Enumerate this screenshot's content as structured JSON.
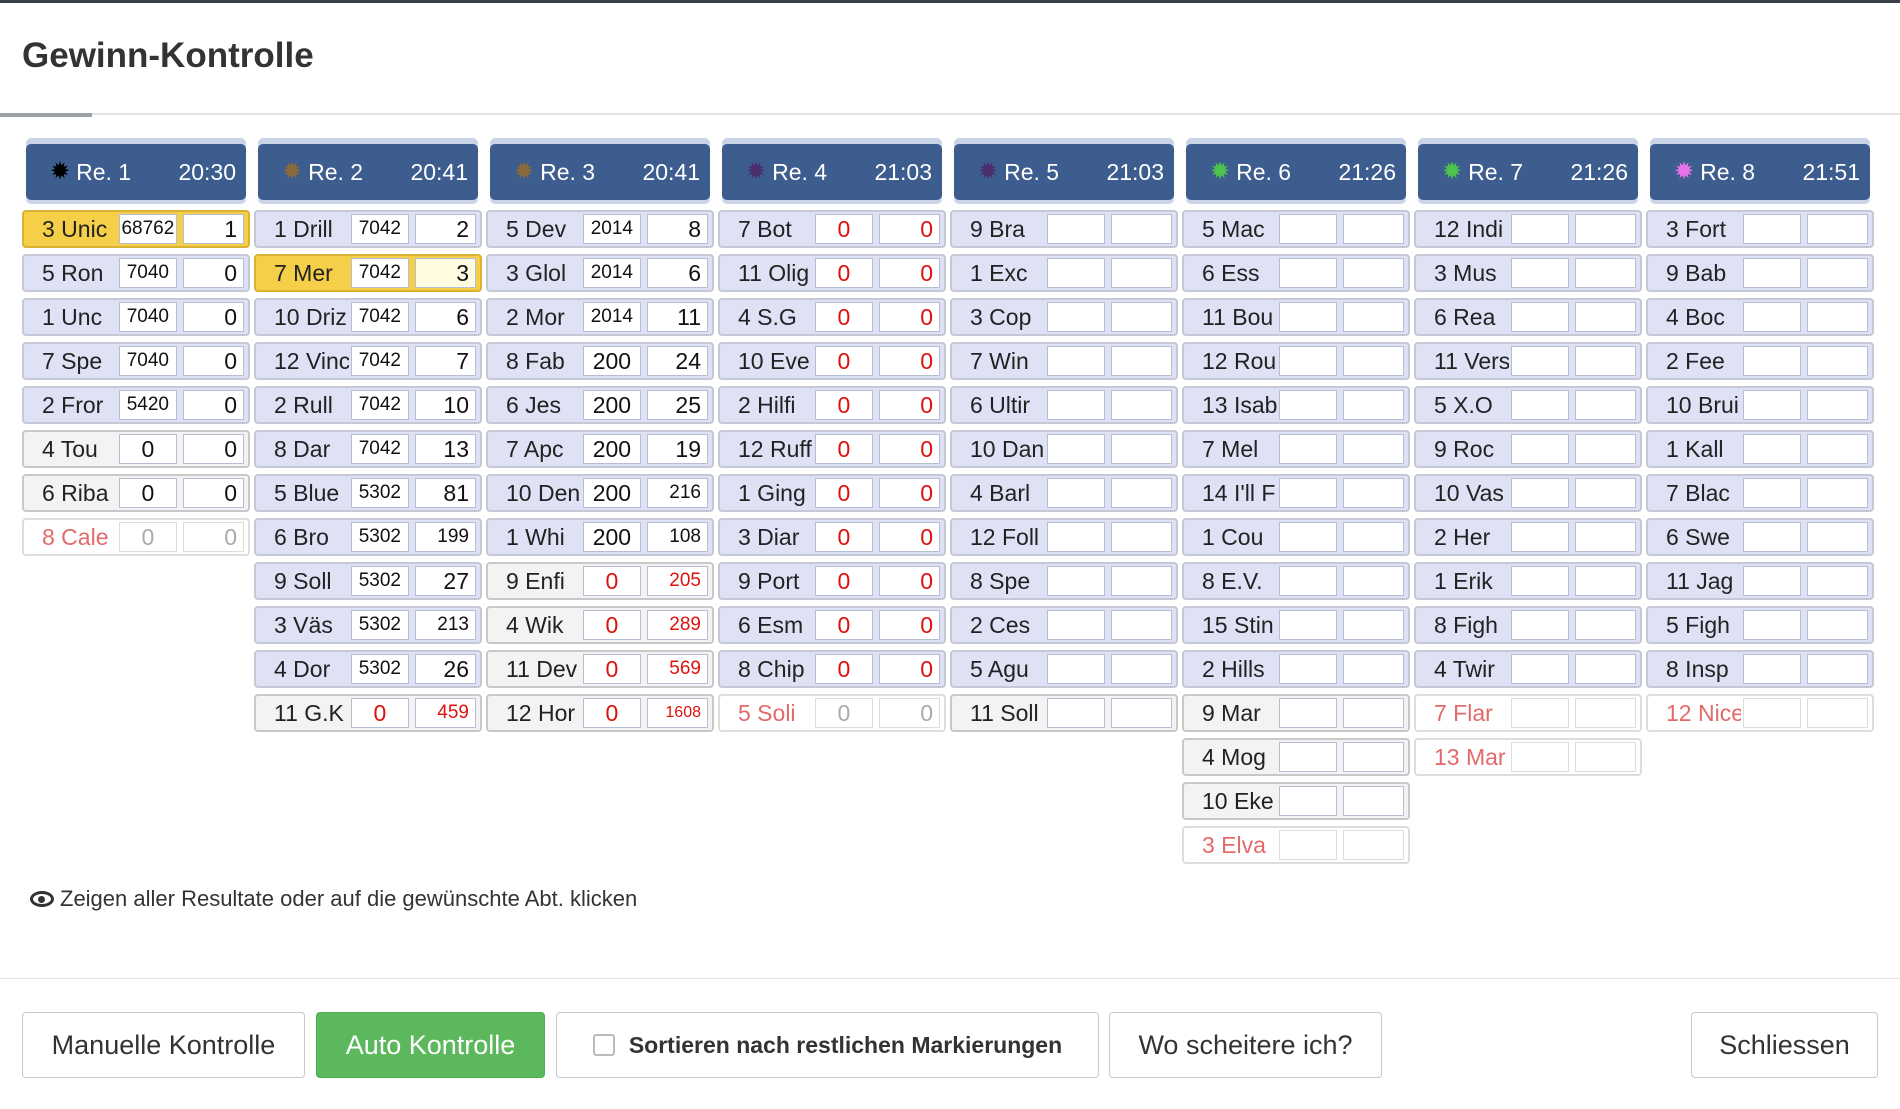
{
  "dialog": {
    "title": "Gewinn-Kontrolle"
  },
  "races": [
    {
      "label": "Re. 1",
      "time": "20:30",
      "star_color": "#000000",
      "entries": [
        {
          "horse": "3 Unic",
          "v1": "68762",
          "v2": "1",
          "state": "selected"
        },
        {
          "horse": "5 Ron",
          "v1": "7040",
          "v2": "0",
          "state": "normal"
        },
        {
          "horse": "1 Unc",
          "v1": "7040",
          "v2": "0",
          "state": "normal"
        },
        {
          "horse": "7 Spe",
          "v1": "7040",
          "v2": "0",
          "state": "normal"
        },
        {
          "horse": "2 Fror",
          "v1": "5420",
          "v2": "0",
          "state": "normal"
        },
        {
          "horse": "4 Tou",
          "v1": "0",
          "v2": "0",
          "state": "plain"
        },
        {
          "horse": "6 Riba",
          "v1": "0",
          "v2": "0",
          "state": "plain"
        },
        {
          "horse": "8 Cale",
          "v1": "0",
          "v2": "0",
          "state": "scratched"
        }
      ]
    },
    {
      "label": "Re. 2",
      "time": "20:41",
      "star_color": "#8b6b3d",
      "entries": [
        {
          "horse": "1 Drill",
          "v1": "7042",
          "v2": "2",
          "state": "normal"
        },
        {
          "horse": "7 Mer",
          "v1": "7042",
          "v2": "3",
          "state": "selected"
        },
        {
          "horse": "10 Driz",
          "v1": "7042",
          "v2": "6",
          "state": "normal"
        },
        {
          "horse": "12 Vinc",
          "v1": "7042",
          "v2": "7",
          "state": "normal"
        },
        {
          "horse": "2 Rull",
          "v1": "7042",
          "v2": "10",
          "state": "normal"
        },
        {
          "horse": "8 Dar",
          "v1": "7042",
          "v2": "13",
          "state": "normal"
        },
        {
          "horse": "5 Blue",
          "v1": "5302",
          "v2": "81",
          "state": "normal"
        },
        {
          "horse": "6 Bro",
          "v1": "5302",
          "v2": "199",
          "state": "normal"
        },
        {
          "horse": "9 Soll",
          "v1": "5302",
          "v2": "27",
          "state": "normal"
        },
        {
          "horse": "3 Väs",
          "v1": "5302",
          "v2": "213",
          "state": "normal"
        },
        {
          "horse": "4 Dor",
          "v1": "5302",
          "v2": "26",
          "state": "normal"
        },
        {
          "horse": "11 G.K",
          "v1": "0",
          "v2": "459",
          "state": "plain"
        }
      ]
    },
    {
      "label": "Re. 3",
      "time": "20:41",
      "star_color": "#8b6b3d",
      "entries": [
        {
          "horse": "5 Dev",
          "v1": "2014",
          "v2": "8",
          "state": "normal"
        },
        {
          "horse": "3 Glol",
          "v1": "2014",
          "v2": "6",
          "state": "normal"
        },
        {
          "horse": "2 Mor",
          "v1": "2014",
          "v2": "11",
          "state": "normal"
        },
        {
          "horse": "8 Fab",
          "v1": "200",
          "v2": "24",
          "state": "normal"
        },
        {
          "horse": "6 Jes",
          "v1": "200",
          "v2": "25",
          "state": "normal"
        },
        {
          "horse": "7 Apc",
          "v1": "200",
          "v2": "19",
          "state": "normal"
        },
        {
          "horse": "10 Den",
          "v1": "200",
          "v2": "216",
          "state": "normal"
        },
        {
          "horse": "1 Whi",
          "v1": "200",
          "v2": "108",
          "state": "normal"
        },
        {
          "horse": "9 Enfi",
          "v1": "0",
          "v2": "205",
          "state": "plain"
        },
        {
          "horse": "4 Wik",
          "v1": "0",
          "v2": "289",
          "state": "plain"
        },
        {
          "horse": "11 Dev",
          "v1": "0",
          "v2": "569",
          "state": "plain"
        },
        {
          "horse": "12 Hor",
          "v1": "0",
          "v2": "1608",
          "state": "plain"
        }
      ]
    },
    {
      "label": "Re. 4",
      "time": "21:03",
      "star_color": "#4a2f6e",
      "entries": [
        {
          "horse": "7 Bot",
          "v1": "0",
          "v2": "0",
          "state": "normal"
        },
        {
          "horse": "11 Olig",
          "v1": "0",
          "v2": "0",
          "state": "normal"
        },
        {
          "horse": "4 S.G",
          "v1": "0",
          "v2": "0",
          "state": "normal"
        },
        {
          "horse": "10 Eve",
          "v1": "0",
          "v2": "0",
          "state": "normal"
        },
        {
          "horse": "2 Hilfi",
          "v1": "0",
          "v2": "0",
          "state": "normal"
        },
        {
          "horse": "12 Ruff",
          "v1": "0",
          "v2": "0",
          "state": "normal"
        },
        {
          "horse": "1 Ging",
          "v1": "0",
          "v2": "0",
          "state": "normal"
        },
        {
          "horse": "3 Diar",
          "v1": "0",
          "v2": "0",
          "state": "normal"
        },
        {
          "horse": "9 Port",
          "v1": "0",
          "v2": "0",
          "state": "normal"
        },
        {
          "horse": "6 Esm",
          "v1": "0",
          "v2": "0",
          "state": "normal"
        },
        {
          "horse": "8 Chip",
          "v1": "0",
          "v2": "0",
          "state": "normal"
        },
        {
          "horse": "5 Soli",
          "v1": "0",
          "v2": "0",
          "state": "scratched"
        }
      ]
    },
    {
      "label": "Re. 5",
      "time": "21:03",
      "star_color": "#4a2f6e",
      "entries": [
        {
          "horse": "9 Bra",
          "v1": "",
          "v2": "",
          "state": "normal"
        },
        {
          "horse": "1 Exc",
          "v1": "",
          "v2": "",
          "state": "normal"
        },
        {
          "horse": "3 Cop",
          "v1": "",
          "v2": "",
          "state": "normal"
        },
        {
          "horse": "7 Win",
          "v1": "",
          "v2": "",
          "state": "normal"
        },
        {
          "horse": "6 Ultir",
          "v1": "",
          "v2": "",
          "state": "normal"
        },
        {
          "horse": "10 Dan",
          "v1": "",
          "v2": "",
          "state": "normal"
        },
        {
          "horse": "4 Barl",
          "v1": "",
          "v2": "",
          "state": "normal"
        },
        {
          "horse": "12 Foll",
          "v1": "",
          "v2": "",
          "state": "normal"
        },
        {
          "horse": "8 Spe",
          "v1": "",
          "v2": "",
          "state": "normal"
        },
        {
          "horse": "2 Ces",
          "v1": "",
          "v2": "",
          "state": "normal"
        },
        {
          "horse": "5 Agu",
          "v1": "",
          "v2": "",
          "state": "normal"
        },
        {
          "horse": "11 Soll",
          "v1": "",
          "v2": "",
          "state": "plain"
        }
      ]
    },
    {
      "label": "Re. 6",
      "time": "21:26",
      "star_color": "#4cc34c",
      "entries": [
        {
          "horse": "5 Mac",
          "v1": "",
          "v2": "",
          "state": "normal"
        },
        {
          "horse": "6 Ess",
          "v1": "",
          "v2": "",
          "state": "normal"
        },
        {
          "horse": "11 Bou",
          "v1": "",
          "v2": "",
          "state": "normal"
        },
        {
          "horse": "12 Rou",
          "v1": "",
          "v2": "",
          "state": "normal"
        },
        {
          "horse": "13 Isab",
          "v1": "",
          "v2": "",
          "state": "normal"
        },
        {
          "horse": "7 Mel",
          "v1": "",
          "v2": "",
          "state": "normal"
        },
        {
          "horse": "14 I'll F",
          "v1": "",
          "v2": "",
          "state": "normal"
        },
        {
          "horse": "1 Cou",
          "v1": "",
          "v2": "",
          "state": "normal"
        },
        {
          "horse": "8 E.V.",
          "v1": "",
          "v2": "",
          "state": "normal"
        },
        {
          "horse": "15 Stin",
          "v1": "",
          "v2": "",
          "state": "normal"
        },
        {
          "horse": "2 Hills",
          "v1": "",
          "v2": "",
          "state": "normal"
        },
        {
          "horse": "9 Mar",
          "v1": "",
          "v2": "",
          "state": "plain"
        },
        {
          "horse": "4 Mog",
          "v1": "",
          "v2": "",
          "state": "plain"
        },
        {
          "horse": "10 Eke",
          "v1": "",
          "v2": "",
          "state": "plain"
        },
        {
          "horse": "3 Elva",
          "v1": "",
          "v2": "",
          "state": "scratched"
        }
      ]
    },
    {
      "label": "Re. 7",
      "time": "21:26",
      "star_color": "#4cc34c",
      "entries": [
        {
          "horse": "12 Indi",
          "v1": "",
          "v2": "",
          "state": "normal"
        },
        {
          "horse": "3 Mus",
          "v1": "",
          "v2": "",
          "state": "normal"
        },
        {
          "horse": "6 Rea",
          "v1": "",
          "v2": "",
          "state": "normal"
        },
        {
          "horse": "11 Vers",
          "v1": "",
          "v2": "",
          "state": "normal"
        },
        {
          "horse": "5 X.O",
          "v1": "",
          "v2": "",
          "state": "normal"
        },
        {
          "horse": "9 Roc",
          "v1": "",
          "v2": "",
          "state": "normal"
        },
        {
          "horse": "10 Vas",
          "v1": "",
          "v2": "",
          "state": "normal"
        },
        {
          "horse": "2 Her",
          "v1": "",
          "v2": "",
          "state": "normal"
        },
        {
          "horse": "1 Erik",
          "v1": "",
          "v2": "",
          "state": "normal"
        },
        {
          "horse": "8 Figh",
          "v1": "",
          "v2": "",
          "state": "normal"
        },
        {
          "horse": "4 Twir",
          "v1": "",
          "v2": "",
          "state": "normal"
        },
        {
          "horse": "7 Flar",
          "v1": "",
          "v2": "",
          "state": "scratched"
        },
        {
          "horse": "13 Mar",
          "v1": "",
          "v2": "",
          "state": "scratched"
        }
      ]
    },
    {
      "label": "Re. 8",
      "time": "21:51",
      "star_color": "#e873e8",
      "entries": [
        {
          "horse": "3 Fort",
          "v1": "",
          "v2": "",
          "state": "normal"
        },
        {
          "horse": "9 Bab",
          "v1": "",
          "v2": "",
          "state": "normal"
        },
        {
          "horse": "4 Boc",
          "v1": "",
          "v2": "",
          "state": "normal"
        },
        {
          "horse": "2 Fee",
          "v1": "",
          "v2": "",
          "state": "normal"
        },
        {
          "horse": "10 Brui",
          "v1": "",
          "v2": "",
          "state": "normal"
        },
        {
          "horse": "1 Kall",
          "v1": "",
          "v2": "",
          "state": "normal"
        },
        {
          "horse": "7 Blac",
          "v1": "",
          "v2": "",
          "state": "normal"
        },
        {
          "horse": "6 Swe",
          "v1": "",
          "v2": "",
          "state": "normal"
        },
        {
          "horse": "11 Jag",
          "v1": "",
          "v2": "",
          "state": "normal"
        },
        {
          "horse": "5 Figh",
          "v1": "",
          "v2": "",
          "state": "normal"
        },
        {
          "horse": "8 Insp",
          "v1": "",
          "v2": "",
          "state": "normal"
        },
        {
          "horse": "12 Nice",
          "v1": "",
          "v2": "",
          "state": "scratched"
        }
      ]
    }
  ],
  "hint": {
    "icon": "eye-icon",
    "text": "Zeigen aller Resultate oder auf die gewünschte Abt. klicken"
  },
  "footer": {
    "manual_label": "Manuelle Kontrolle",
    "auto_label": "Auto Kontrolle",
    "sort_label": "Sortieren nach restlichen Markierungen",
    "sort_checked": false,
    "where_label": "Wo scheitere ich?",
    "close_label": "Schliessen"
  },
  "colors": {
    "header_bg": "#3c5d8e",
    "row_bg": "#dfe2f5",
    "selected_bg": "#f5cf48",
    "loss_red": "#e0100e",
    "auto_green": "#5cb85c"
  }
}
